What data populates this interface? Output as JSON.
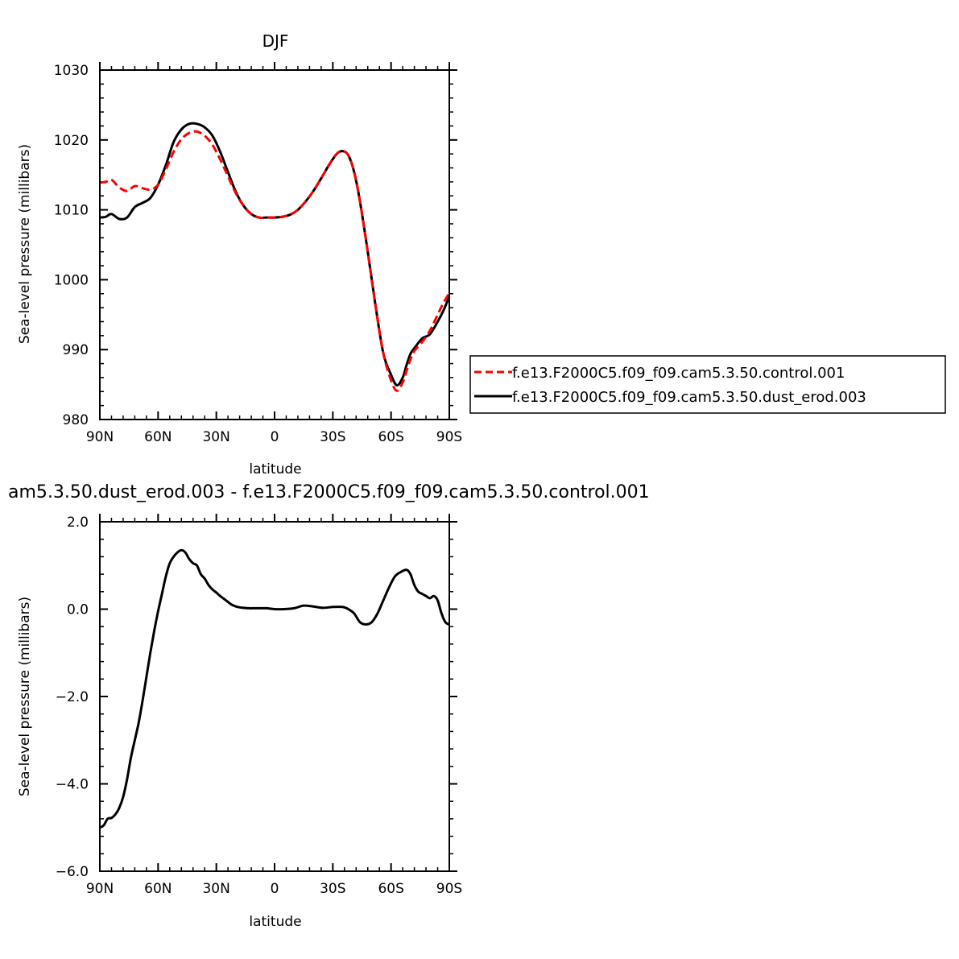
{
  "chart_data": [
    {
      "type": "line",
      "title": "DJF",
      "xlabel": "latitude",
      "ylabel": "Sea-level pressure (millibars)",
      "xlim": [
        -90,
        90
      ],
      "ylim": [
        980,
        1030
      ],
      "x_ticks": [
        -90,
        -60,
        -30,
        0,
        30,
        60,
        90
      ],
      "x_tick_labels": [
        "90N",
        "60N",
        "30N",
        "0",
        "30S",
        "60S",
        "90S"
      ],
      "y_ticks": [
        980,
        990,
        1000,
        1010,
        1020,
        1030
      ],
      "y_tick_labels": [
        "980",
        "990",
        "1000",
        "1010",
        "1020",
        "1030"
      ],
      "legend": {
        "placement": "right"
      },
      "series": [
        {
          "name": "f.e13.F2000C5.f09_f09.cam5.3.50.control.001",
          "color": "#ff0000",
          "dash": "dashed",
          "x": [
            -90,
            -87,
            -84,
            -80,
            -76,
            -72,
            -68,
            -64,
            -60,
            -56,
            -52,
            -48,
            -44,
            -40,
            -36,
            -32,
            -28,
            -24,
            -20,
            -16,
            -12,
            -8,
            -4,
            0,
            4,
            8,
            12,
            16,
            20,
            24,
            28,
            32,
            35,
            38,
            41,
            44,
            48,
            52,
            56,
            60,
            63,
            66,
            68,
            70,
            72,
            76,
            80,
            84,
            87,
            90
          ],
          "values": [
            1013.9,
            1014.0,
            1014.3,
            1013.2,
            1012.7,
            1013.4,
            1013.1,
            1012.9,
            1013.6,
            1015.8,
            1018.3,
            1020.1,
            1021.0,
            1021.2,
            1020.6,
            1019.3,
            1017.2,
            1014.8,
            1012.4,
            1010.6,
            1009.4,
            1008.9,
            1008.9,
            1008.9,
            1009.0,
            1009.3,
            1010.0,
            1011.2,
            1012.7,
            1014.5,
            1016.4,
            1018.0,
            1018.4,
            1017.8,
            1015.4,
            1011.2,
            1004.0,
            996.3,
            989.5,
            985.6,
            984.1,
            985.3,
            987.0,
            988.6,
            989.8,
            991.1,
            992.7,
            995.0,
            996.7,
            998.1
          ]
        },
        {
          "name": "f.e13.F2000C5.f09_f09.cam5.3.50.dust_erod.003",
          "color": "#000000",
          "dash": "solid",
          "x": [
            -90,
            -87,
            -84,
            -80,
            -76,
            -72,
            -68,
            -64,
            -60,
            -56,
            -52,
            -48,
            -44,
            -40,
            -36,
            -32,
            -28,
            -24,
            -20,
            -16,
            -12,
            -8,
            -4,
            0,
            4,
            8,
            12,
            16,
            20,
            24,
            28,
            32,
            35,
            38,
            41,
            44,
            48,
            52,
            56,
            60,
            63,
            66,
            68,
            70,
            72,
            76,
            80,
            84,
            87,
            90
          ],
          "values": [
            1008.9,
            1009.0,
            1009.4,
            1008.7,
            1008.9,
            1010.4,
            1011.0,
            1011.7,
            1013.6,
            1016.4,
            1019.7,
            1021.5,
            1022.3,
            1022.3,
            1021.8,
            1020.6,
            1018.3,
            1015.4,
            1012.6,
            1010.6,
            1009.4,
            1008.9,
            1008.9,
            1008.9,
            1009.0,
            1009.3,
            1010.0,
            1011.2,
            1012.7,
            1014.5,
            1016.4,
            1018.0,
            1018.4,
            1017.8,
            1015.4,
            1011.2,
            1004.0,
            996.3,
            989.5,
            986.4,
            984.9,
            986.0,
            987.8,
            989.4,
            990.2,
            991.6,
            992.2,
            994.0,
            995.6,
            997.6
          ]
        }
      ]
    },
    {
      "type": "line",
      "title": "am5.3.50.dust_erod.003 - f.e13.F2000C5.f09_f09.cam5.3.50.control.001",
      "xlabel": "latitude",
      "ylabel": "Sea-level pressure (millibars)",
      "xlim": [
        -90,
        90
      ],
      "ylim": [
        -6.0,
        2.0
      ],
      "x_ticks": [
        -90,
        -60,
        -30,
        0,
        30,
        60,
        90
      ],
      "x_tick_labels": [
        "90N",
        "60N",
        "30N",
        "0",
        "30S",
        "60S",
        "90S"
      ],
      "y_ticks": [
        -6.0,
        -4.0,
        -2.0,
        0.0,
        2.0
      ],
      "y_tick_labels": [
        "−6.0",
        "−4.0",
        "−2.0",
        "0.0",
        "2.0"
      ],
      "series": [
        {
          "color": "#000000",
          "dash": "solid",
          "x": [
            -90,
            -88,
            -86,
            -84,
            -82,
            -80,
            -78,
            -76,
            -74,
            -72,
            -70,
            -68,
            -66,
            -64,
            -62,
            -60,
            -58,
            -56,
            -54,
            -52,
            -50,
            -48,
            -46,
            -44,
            -42,
            -40,
            -38,
            -36,
            -34,
            -32,
            -30,
            -28,
            -25,
            -22,
            -19,
            -16,
            -13,
            -10,
            -7,
            -4,
            0,
            5,
            10,
            15,
            20,
            25,
            30,
            35,
            38,
            41,
            44,
            47,
            50,
            53,
            56,
            59,
            62,
            65,
            68,
            70,
            72,
            74,
            76,
            78,
            80,
            82,
            84,
            86,
            88,
            90
          ],
          "values": [
            -5.0,
            -4.95,
            -4.8,
            -4.78,
            -4.7,
            -4.55,
            -4.3,
            -3.9,
            -3.4,
            -3.0,
            -2.6,
            -2.1,
            -1.55,
            -1.0,
            -0.5,
            -0.05,
            0.35,
            0.75,
            1.05,
            1.2,
            1.3,
            1.35,
            1.3,
            1.15,
            1.05,
            1.0,
            0.8,
            0.7,
            0.55,
            0.45,
            0.38,
            0.3,
            0.2,
            0.1,
            0.05,
            0.03,
            0.02,
            0.02,
            0.02,
            0.02,
            0.0,
            0.0,
            0.02,
            0.08,
            0.06,
            0.03,
            0.05,
            0.05,
            0.0,
            -0.1,
            -0.3,
            -0.35,
            -0.3,
            -0.1,
            0.2,
            0.5,
            0.75,
            0.85,
            0.9,
            0.8,
            0.55,
            0.4,
            0.35,
            0.3,
            0.25,
            0.3,
            0.2,
            -0.1,
            -0.3,
            -0.35
          ]
        }
      ]
    }
  ]
}
